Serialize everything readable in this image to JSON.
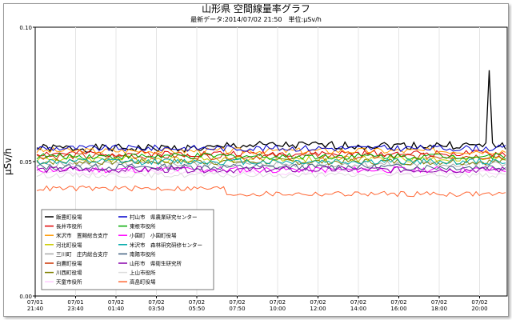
{
  "chart_data": {
    "type": "line",
    "title": "山形県 空間線量率グラフ",
    "subtitle": "最新データ:2014/07/02 21:50　単位:μSv/h",
    "ylabel": "μSv/h",
    "xlabel": "",
    "ylim": [
      0,
      0.1
    ],
    "y_ticks": [
      "0.00",
      "0.05",
      "0.10"
    ],
    "x_ticks": [
      {
        "date": "07/01",
        "time": "21:40"
      },
      {
        "date": "07/01",
        "time": "23:40"
      },
      {
        "date": "07/02",
        "time": "01:40"
      },
      {
        "date": "07/02",
        "time": "03:50"
      },
      {
        "date": "07/02",
        "time": "05:50"
      },
      {
        "date": "07/02",
        "time": "07:50"
      },
      {
        "date": "07/02",
        "time": "10:00"
      },
      {
        "date": "07/02",
        "time": "12:00"
      },
      {
        "date": "07/02",
        "time": "14:00"
      },
      {
        "date": "07/02",
        "time": "16:00"
      },
      {
        "date": "07/02",
        "time": "18:00"
      },
      {
        "date": "07/02",
        "time": "20:00"
      }
    ],
    "grid": "vertical",
    "legend_position": "bottom-left",
    "series": [
      {
        "name": "飯豊町役場",
        "color": "#000000",
        "base": 0.055,
        "jitter": 0.0015,
        "seed": 1,
        "rise": 0.001
      },
      {
        "name": "長井市役所",
        "color": "#e00000",
        "base": 0.053,
        "jitter": 0.0012,
        "seed": 2,
        "rise": 0.0
      },
      {
        "name": "米沢市　置賜総合支庁",
        "color": "#ff9900",
        "base": 0.054,
        "jitter": 0.0012,
        "seed": 3,
        "rise": 0.0
      },
      {
        "name": "河北町役場",
        "color": "#cccc00",
        "base": 0.051,
        "jitter": 0.0012,
        "seed": 4,
        "rise": 0.0
      },
      {
        "name": "三川町　庄内総合支庁",
        "color": "#aaaaaa",
        "base": 0.049,
        "jitter": 0.0012,
        "seed": 5,
        "rise": 0.0
      },
      {
        "name": "白鷹町役場",
        "color": "#cc3300",
        "base": 0.052,
        "jitter": 0.0012,
        "seed": 6,
        "rise": 0.0
      },
      {
        "name": "川西町役場",
        "color": "#808000",
        "base": 0.05,
        "jitter": 0.0012,
        "seed": 7,
        "rise": 0.0
      },
      {
        "name": "天童市役所",
        "color": "#ffccff",
        "base": 0.046,
        "jitter": 0.001,
        "seed": 8,
        "rise": 0.0
      },
      {
        "name": "村山市　県農業研究センター",
        "color": "#0000cc",
        "base": 0.055,
        "jitter": 0.0012,
        "seed": 9,
        "rise": 0.0
      },
      {
        "name": "東根市役所",
        "color": "#00aa00",
        "base": 0.052,
        "jitter": 0.0012,
        "seed": 10,
        "rise": 0.0
      },
      {
        "name": "小国町　小国町役場",
        "color": "#ff00ff",
        "base": 0.047,
        "jitter": 0.0012,
        "seed": 11,
        "rise": 0.0
      },
      {
        "name": "米沢市　森林研究研修センター",
        "color": "#00aaaa",
        "base": 0.05,
        "jitter": 0.0012,
        "seed": 12,
        "rise": 0.0
      },
      {
        "name": "南陽市役所",
        "color": "#406080",
        "base": 0.048,
        "jitter": 0.0012,
        "seed": 13,
        "rise": 0.0
      },
      {
        "name": "山形市　県衛生研究所",
        "color": "#8800aa",
        "base": 0.047,
        "jitter": 0.0012,
        "seed": 14,
        "rise": 0.0
      },
      {
        "name": "上山市役所",
        "color": "#dddddd",
        "base": 0.045,
        "jitter": 0.001,
        "seed": 15,
        "rise": 0.0
      },
      {
        "name": "高畠町役場",
        "color": "#ff6633",
        "base": 0.04,
        "jitter": 0.001,
        "seed": 16,
        "rise": -0.002
      }
    ],
    "spike": {
      "series": 0,
      "x_fraction": 0.965,
      "value": 0.084
    }
  }
}
